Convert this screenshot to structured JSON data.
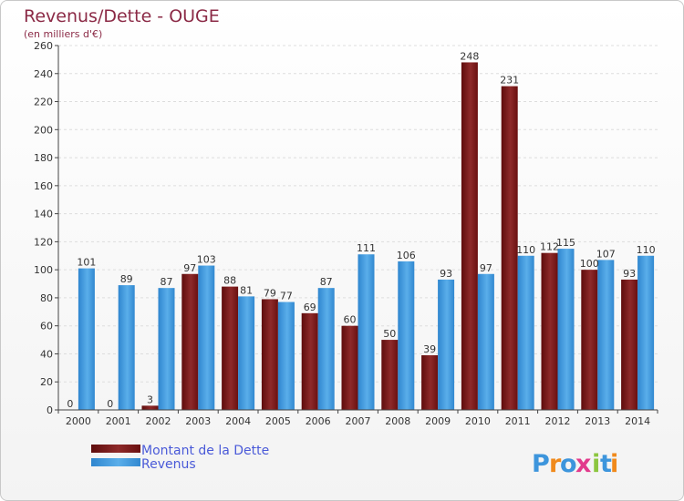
{
  "chart_data": {
    "type": "bar",
    "title": "Revenus/Dette - OUGE",
    "subtitle": "(en milliers d'€)",
    "xlabel": "",
    "ylabel": "",
    "ylim": [
      0,
      260
    ],
    "yticks": [
      0,
      20,
      40,
      60,
      80,
      100,
      120,
      140,
      160,
      180,
      200,
      220,
      240,
      260
    ],
    "grid": true,
    "legend_position": "bottom-left",
    "categories": [
      "2000",
      "2001",
      "2002",
      "2003",
      "2004",
      "2005",
      "2006",
      "2007",
      "2008",
      "2009",
      "2010",
      "2011",
      "2012",
      "2013",
      "2014"
    ],
    "series": [
      {
        "name": "Montant de la Dette",
        "color": "#7a1616",
        "values": [
          0,
          0,
          3,
          97,
          88,
          79,
          69,
          60,
          50,
          39,
          248,
          231,
          112,
          100,
          93
        ]
      },
      {
        "name": "Revenus",
        "color": "#3d95dc",
        "values": [
          101,
          89,
          87,
          103,
          81,
          77,
          87,
          111,
          106,
          93,
          97,
          110,
          115,
          107,
          110
        ]
      }
    ]
  },
  "logo": {
    "letters": [
      "P",
      "r",
      "o",
      "x",
      "i",
      "t",
      "i"
    ],
    "colors": [
      "#3d95dc",
      "#f08a1c",
      "#3d95dc",
      "#e23a8c",
      "#8cc63f",
      "#3d95dc",
      "#f08a1c"
    ]
  }
}
